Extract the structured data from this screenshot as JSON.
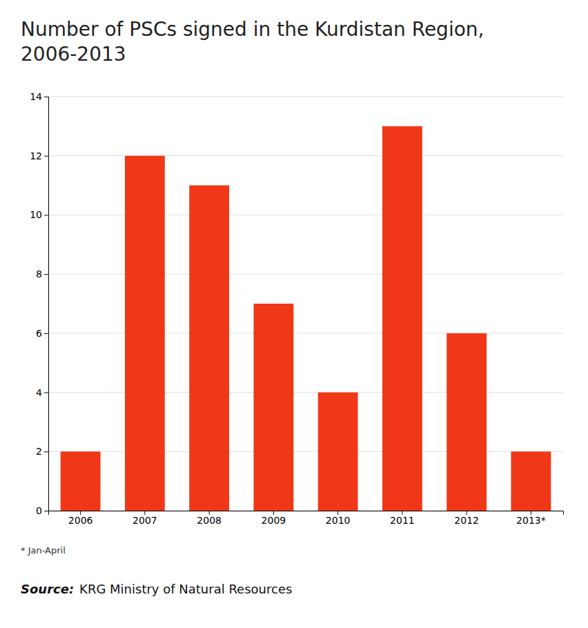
{
  "chart_data": {
    "type": "bar",
    "title": "Number of PSCs signed in the Kurdistan Region, 2006-2013",
    "categories": [
      "2006",
      "2007",
      "2008",
      "2009",
      "2010",
      "2011",
      "2012",
      "2013*"
    ],
    "values": [
      2,
      12,
      11,
      7,
      4,
      13,
      6,
      2
    ],
    "color": "#f03818",
    "ylim": [
      0,
      14
    ],
    "yticks": [
      0,
      2,
      4,
      6,
      8,
      10,
      12,
      14
    ],
    "grid": true,
    "annotations": [
      "* Jan-April",
      "Source:",
      "KRG Ministry of Natural Resources"
    ]
  }
}
